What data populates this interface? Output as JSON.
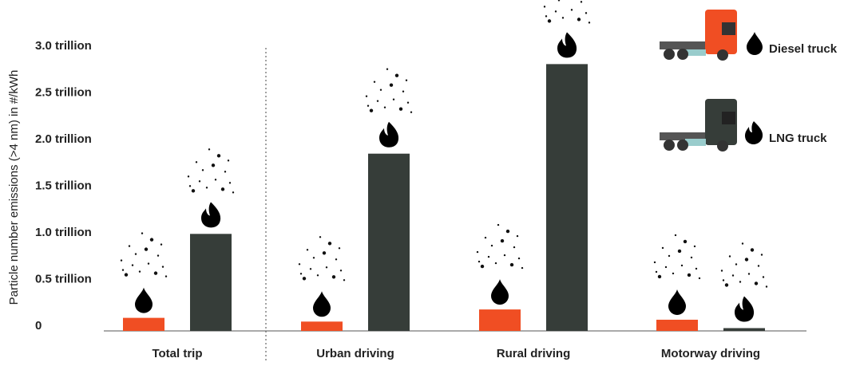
{
  "chart_data": {
    "type": "bar",
    "ylabel": "Particle number emissions (>4 nm) in #/kWh",
    "categories": [
      "Total trip",
      "Urban driving",
      "Rural driving",
      "Motorway driving"
    ],
    "series": [
      {
        "name": "Diesel truck",
        "color": "#f04e23",
        "values": [
          0.14,
          0.1,
          0.23,
          0.12
        ]
      },
      {
        "name": "LNG truck",
        "color": "#363d39",
        "values": [
          1.04,
          1.9,
          2.86,
          0.03
        ]
      }
    ],
    "ylim": [
      0,
      3.0
    ],
    "yticks": [
      0,
      {
        "value": 0.5,
        "label": "0.5 trillion"
      },
      {
        "value": 1.0,
        "label": "1.0 trillion"
      },
      {
        "value": 1.5,
        "label": "1.5 trillion"
      },
      {
        "value": 2.0,
        "label": "2.0 trillion"
      },
      {
        "value": 2.5,
        "label": "2.5 trillion"
      },
      {
        "value": 3.0,
        "label": "3.0 trillion"
      }
    ],
    "grid": false
  }
}
